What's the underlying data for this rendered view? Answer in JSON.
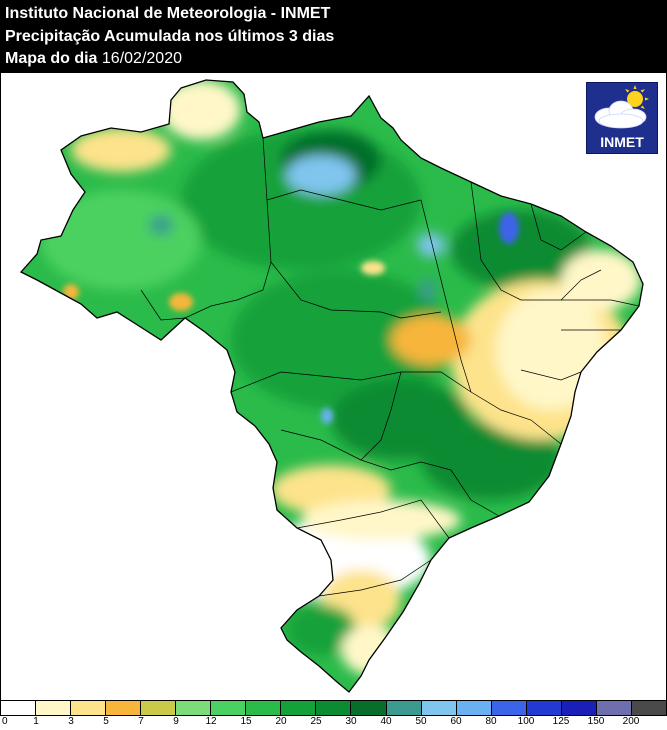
{
  "header": {
    "line1": "Instituto Nacional de Meteorologia - INMET",
    "line2": "Precipitação Acumulada nos últimos 3 dias",
    "line3_label": "Mapa do dia",
    "line3_date": "16/02/2020"
  },
  "logo": {
    "text": "INMET",
    "icon": "cloud-sun-icon"
  },
  "legend": {
    "ticks": [
      "0",
      "1",
      "3",
      "5",
      "7",
      "9",
      "12",
      "15",
      "20",
      "25",
      "30",
      "40",
      "50",
      "60",
      "80",
      "100",
      "125",
      "150",
      "200"
    ],
    "colors": [
      "#ffffff",
      "#fff7c8",
      "#fde38b",
      "#f7b63b",
      "#c9c94a",
      "#7cdc7a",
      "#4bd161",
      "#2bbb4a",
      "#14a13a",
      "#0b8b32",
      "#066f2b",
      "#3b9b8f",
      "#7fc5ee",
      "#69b1f0",
      "#3c64ea",
      "#2339d4",
      "#1a1fb8",
      "#6f6faf",
      "#4a4a4a"
    ]
  },
  "colors": {
    "header_bg": "#000000",
    "ocean": "#ffffff",
    "outside_land": "#ffffff",
    "border": "#000000"
  }
}
